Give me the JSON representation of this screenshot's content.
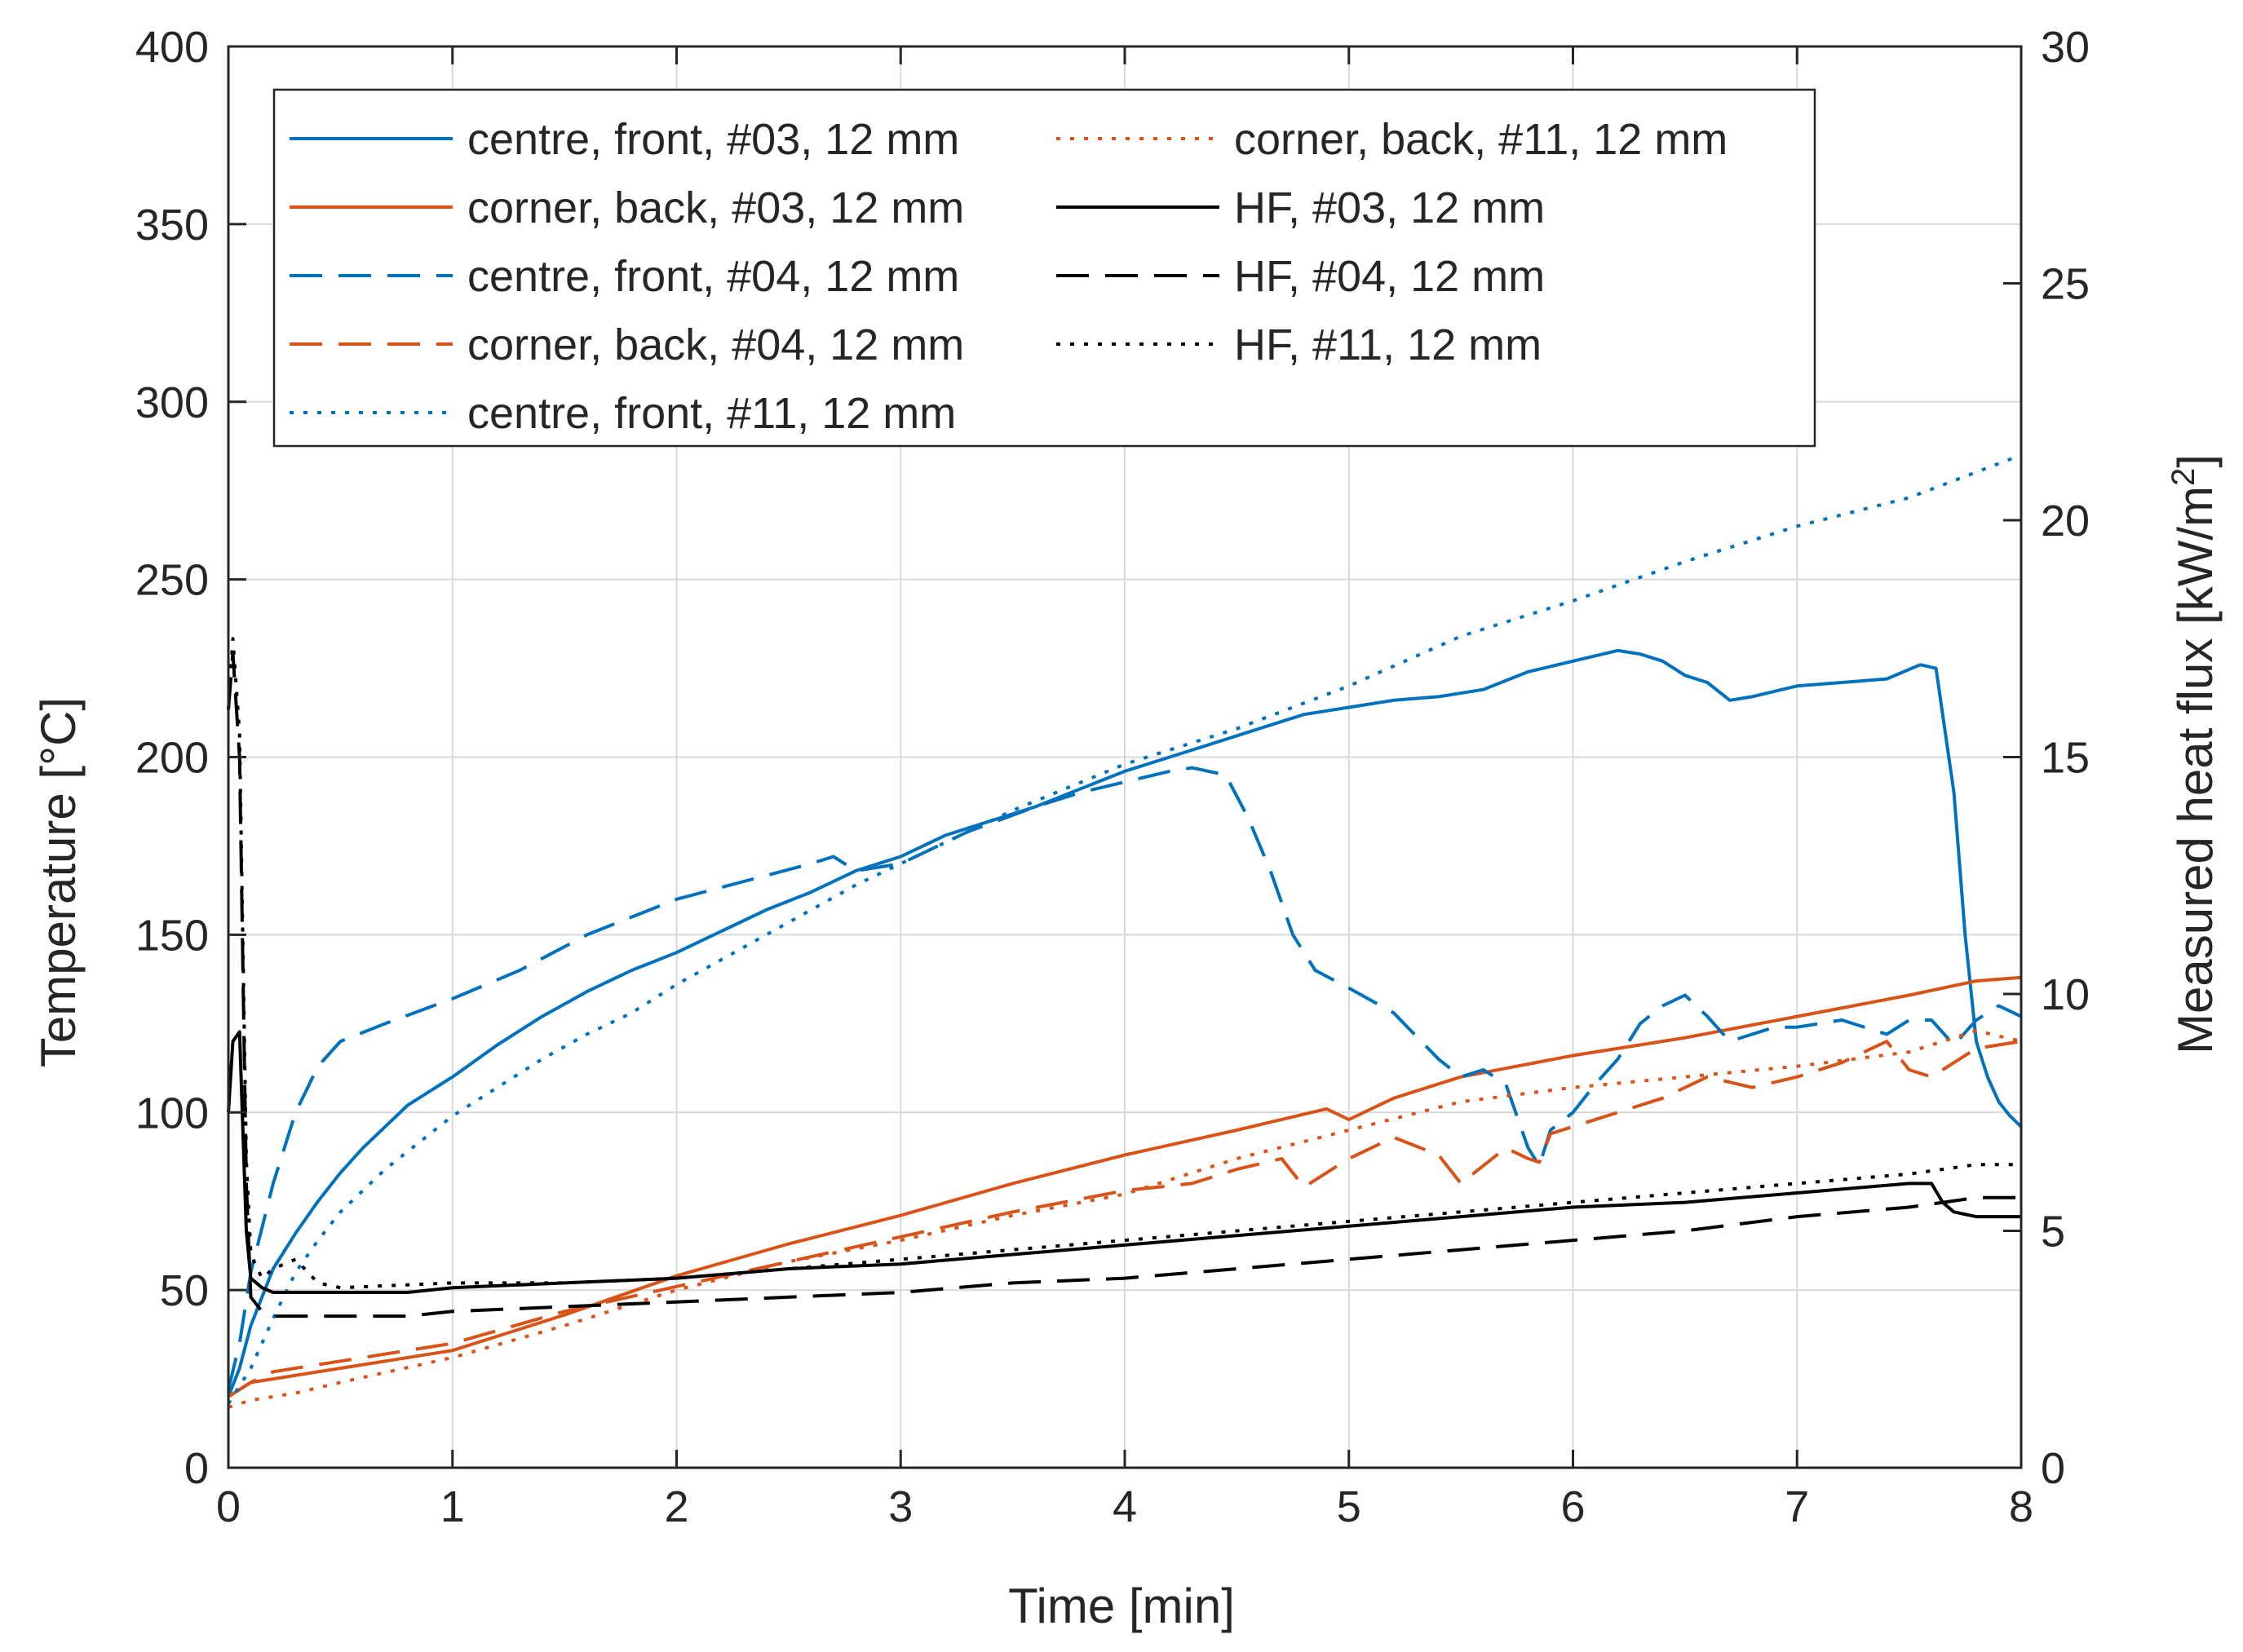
{
  "chart_data": {
    "type": "line",
    "title": "",
    "xlabel": "Time [min]",
    "ylabel": "Temperature [°C]",
    "y2label_parts": {
      "pre": "Measured heat flux [kW/m",
      "sup": "2",
      "post": "]"
    },
    "xlim": [
      0,
      8
    ],
    "ylim": [
      0,
      400
    ],
    "y2lim": [
      0,
      30
    ],
    "xticks": [
      "0",
      "1",
      "2",
      "3",
      "4",
      "5",
      "6",
      "7",
      "8"
    ],
    "yticks": [
      "0",
      "50",
      "100",
      "150",
      "200",
      "250",
      "300",
      "350",
      "400"
    ],
    "y2ticks": [
      "0",
      "5",
      "10",
      "15",
      "20",
      "25",
      "30"
    ],
    "grid": true,
    "legend_position": "top-left",
    "colors": {
      "blue": "#0072BD",
      "orange": "#D95319",
      "black": "#000000",
      "axis": "#262626",
      "grid": "#d9d9d9"
    },
    "series": [
      {
        "name": "centre, front, #03, 12 mm",
        "axis": "left",
        "color": "#0072BD",
        "dash": "solid",
        "x": [
          0,
          0.05,
          0.1,
          0.2,
          0.3,
          0.4,
          0.5,
          0.6,
          0.7,
          0.8,
          0.9,
          1.0,
          1.2,
          1.4,
          1.6,
          1.8,
          2.0,
          2.2,
          2.4,
          2.6,
          2.8,
          3.0,
          3.2,
          3.4,
          3.6,
          3.8,
          4.0,
          4.2,
          4.4,
          4.6,
          4.8,
          5.0,
          5.2,
          5.4,
          5.6,
          5.8,
          6.0,
          6.2,
          6.3,
          6.4,
          6.5,
          6.6,
          6.7,
          6.8,
          7.0,
          7.2,
          7.4,
          7.55,
          7.62,
          7.7,
          7.75,
          7.8,
          7.85,
          7.9,
          7.95,
          8.0
        ],
        "y": [
          20,
          28,
          40,
          56,
          66,
          75,
          83,
          90,
          96,
          102,
          106,
          110,
          119,
          127,
          134,
          140,
          145,
          151,
          157,
          162,
          168,
          172,
          178,
          182,
          186,
          191,
          196,
          200,
          204,
          208,
          212,
          214,
          216,
          217,
          219,
          224,
          227,
          230,
          229,
          227,
          223,
          221,
          216,
          217,
          220,
          221,
          222,
          226,
          225,
          190,
          150,
          120,
          110,
          103,
          99,
          96
        ]
      },
      {
        "name": "corner, back, #03, 12 mm",
        "axis": "left",
        "color": "#D95319",
        "dash": "solid",
        "x": [
          0,
          0.1,
          0.2,
          0.5,
          1.0,
          1.5,
          2.0,
          2.5,
          3.0,
          3.5,
          4.0,
          4.5,
          4.9,
          5.0,
          5.2,
          5.5,
          6.0,
          6.5,
          7.0,
          7.5,
          7.8,
          8.0
        ],
        "y": [
          20,
          24,
          25,
          28,
          33,
          43,
          54,
          63,
          71,
          80,
          88,
          95,
          101,
          98,
          104,
          110,
          116,
          121,
          127,
          133,
          137,
          138
        ]
      },
      {
        "name": "centre, front, #04, 12 mm",
        "axis": "left",
        "color": "#0072BD",
        "dash": "long",
        "x": [
          0,
          0.05,
          0.1,
          0.2,
          0.3,
          0.4,
          0.5,
          0.7,
          1.0,
          1.3,
          1.6,
          2.0,
          2.3,
          2.6,
          2.7,
          2.8,
          3.0,
          3.3,
          3.6,
          3.8,
          4.0,
          4.2,
          4.3,
          4.45,
          4.55,
          4.65,
          4.75,
          4.85,
          5.0,
          5.2,
          5.4,
          5.5,
          5.6,
          5.7,
          5.8,
          5.85,
          5.9,
          6.0,
          6.1,
          6.2,
          6.3,
          6.4,
          6.5,
          6.6,
          6.7,
          6.8,
          6.9,
          7.0,
          7.2,
          7.4,
          7.5,
          7.6,
          7.7,
          7.8,
          7.9,
          8.0
        ],
        "y": [
          22,
          35,
          55,
          80,
          100,
          113,
          120,
          125,
          132,
          140,
          150,
          160,
          165,
          170,
          172,
          168,
          170,
          179,
          186,
          190,
          193,
          196,
          197,
          195,
          183,
          168,
          150,
          140,
          135,
          128,
          115,
          110,
          112,
          108,
          90,
          85,
          95,
          100,
          108,
          115,
          125,
          130,
          133,
          127,
          120,
          122,
          124,
          124,
          126,
          122,
          126,
          126,
          119,
          126,
          130,
          127
        ]
      },
      {
        "name": "corner, back, #04, 12 mm",
        "axis": "left",
        "color": "#D95319",
        "dash": "long",
        "x": [
          0,
          0.1,
          0.2,
          0.5,
          1.0,
          1.5,
          2.0,
          2.5,
          3.0,
          3.5,
          4.0,
          4.3,
          4.5,
          4.7,
          4.8,
          5.0,
          5.2,
          5.4,
          5.5,
          5.6,
          5.7,
          5.8,
          5.85,
          5.9,
          6.0,
          6.2,
          6.4,
          6.6,
          6.8,
          7.0,
          7.2,
          7.4,
          7.5,
          7.6,
          7.8,
          8.0
        ],
        "y": [
          20,
          24,
          27,
          30,
          35,
          44,
          51,
          58,
          65,
          72,
          78,
          80,
          84,
          87,
          79,
          87,
          93,
          88,
          80,
          85,
          90,
          87,
          86,
          94,
          96,
          100,
          104,
          110,
          107,
          110,
          114,
          120,
          112,
          110,
          118,
          120
        ]
      },
      {
        "name": "centre, front, #11, 12 mm",
        "axis": "left",
        "color": "#0072BD",
        "dash": "dot",
        "x": [
          0,
          0.1,
          0.2,
          0.3,
          0.4,
          0.5,
          0.6,
          0.7,
          0.8,
          0.9,
          1.0,
          1.2,
          1.4,
          1.6,
          1.8,
          2.0,
          2.2,
          2.4,
          2.6,
          2.8,
          3.0,
          3.5,
          4.0,
          4.5,
          5.0,
          5.5,
          6.0,
          6.5,
          7.0,
          7.5,
          8.0
        ],
        "y": [
          18,
          28,
          42,
          55,
          64,
          72,
          78,
          84,
          89,
          94,
          99,
          107,
          115,
          122,
          128,
          136,
          143,
          150,
          157,
          164,
          170,
          185,
          198,
          208,
          220,
          234,
          244,
          255,
          265,
          273,
          285
        ]
      },
      {
        "name": "corner, back, #11, 12 mm",
        "axis": "left",
        "color": "#D95319",
        "dash": "dot",
        "x": [
          0,
          0.1,
          0.3,
          0.5,
          1.0,
          1.5,
          2.0,
          2.5,
          3.0,
          3.5,
          4.0,
          4.5,
          5.0,
          5.5,
          6.0,
          6.5,
          7.0,
          7.5,
          7.8,
          8.0
        ],
        "y": [
          17,
          19,
          21,
          24,
          31,
          40,
          50,
          58,
          64,
          71,
          77,
          87,
          95,
          103,
          107,
          110,
          113,
          117,
          123,
          120
        ]
      },
      {
        "name": "HF, #03, 12 mm",
        "axis": "right",
        "color": "#000000",
        "dash": "solid",
        "x": [
          0,
          0.02,
          0.05,
          0.08,
          0.1,
          0.15,
          0.2,
          0.3,
          0.5,
          0.8,
          1.0,
          1.5,
          2.0,
          2.5,
          3.0,
          3.5,
          4.0,
          4.5,
          5.0,
          5.5,
          6.0,
          6.5,
          7.0,
          7.5,
          7.6,
          7.65,
          7.7,
          7.8,
          8.0
        ],
        "y": [
          7.5,
          9.0,
          9.2,
          5.0,
          4.0,
          3.8,
          3.7,
          3.7,
          3.7,
          3.7,
          3.8,
          3.9,
          4.0,
          4.2,
          4.3,
          4.5,
          4.7,
          4.9,
          5.1,
          5.3,
          5.5,
          5.6,
          5.8,
          6.0,
          6.0,
          5.6,
          5.4,
          5.3,
          5.3
        ]
      },
      {
        "name": "HF, #04, 12 mm",
        "axis": "right",
        "color": "#000000",
        "dash": "long",
        "x": [
          0,
          0.02,
          0.05,
          0.08,
          0.1,
          0.15,
          0.2,
          0.5,
          0.8,
          1.0,
          1.5,
          2.0,
          2.5,
          3.0,
          3.5,
          4.0,
          4.5,
          5.0,
          5.5,
          6.0,
          6.5,
          7.0,
          7.5,
          7.8,
          8.0
        ],
        "y": [
          16,
          17.2,
          15.0,
          6.0,
          3.6,
          3.3,
          3.2,
          3.2,
          3.2,
          3.3,
          3.4,
          3.5,
          3.6,
          3.7,
          3.9,
          4.0,
          4.2,
          4.4,
          4.6,
          4.8,
          5.0,
          5.3,
          5.5,
          5.7,
          5.7
        ]
      },
      {
        "name": "HF, #11, 12 mm",
        "axis": "right",
        "color": "#000000",
        "dash": "dot",
        "x": [
          0,
          0.02,
          0.05,
          0.08,
          0.1,
          0.15,
          0.2,
          0.3,
          0.4,
          0.5,
          1.0,
          1.5,
          2.0,
          2.5,
          3.0,
          3.5,
          4.0,
          4.5,
          5.0,
          5.5,
          6.0,
          6.5,
          7.0,
          7.5,
          7.8,
          8.0
        ],
        "y": [
          16,
          17.5,
          15.5,
          6.5,
          4.5,
          4.0,
          4.2,
          4.4,
          3.9,
          3.8,
          3.9,
          3.9,
          4.0,
          4.2,
          4.4,
          4.6,
          4.8,
          5.0,
          5.2,
          5.4,
          5.6,
          5.8,
          6.0,
          6.2,
          6.4,
          6.4
        ]
      }
    ]
  }
}
